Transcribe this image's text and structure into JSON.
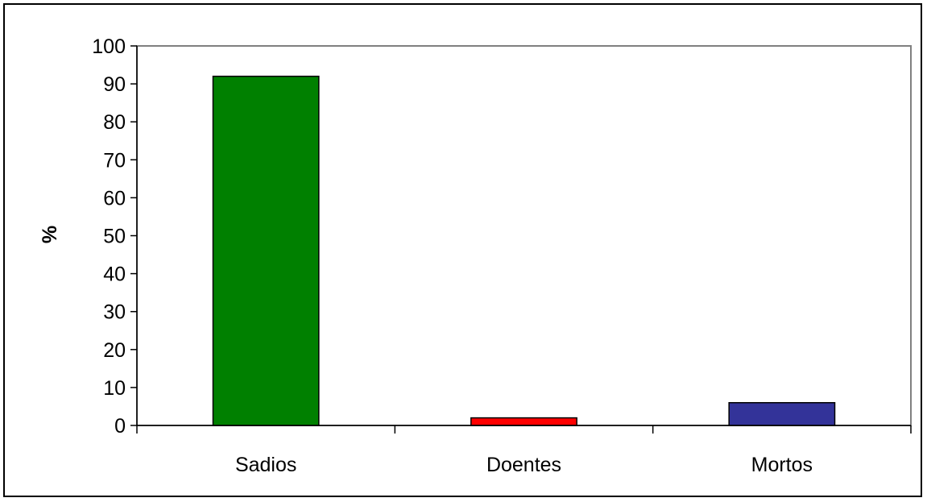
{
  "chart_data": {
    "type": "bar",
    "title": "",
    "xlabel": "",
    "ylabel": "%",
    "categories": [
      "Sadios",
      "Doentes",
      "Mortos"
    ],
    "values": [
      92,
      2,
      6
    ],
    "colors": [
      "#008000",
      "#ff0000",
      "#333399"
    ],
    "ylim": [
      0,
      100
    ],
    "yticks": [
      "0",
      "10",
      "20",
      "30",
      "40",
      "50",
      "60",
      "70",
      "80",
      "90",
      "100"
    ],
    "grid": false,
    "legend": "none",
    "plot_border_color": "#808080"
  }
}
